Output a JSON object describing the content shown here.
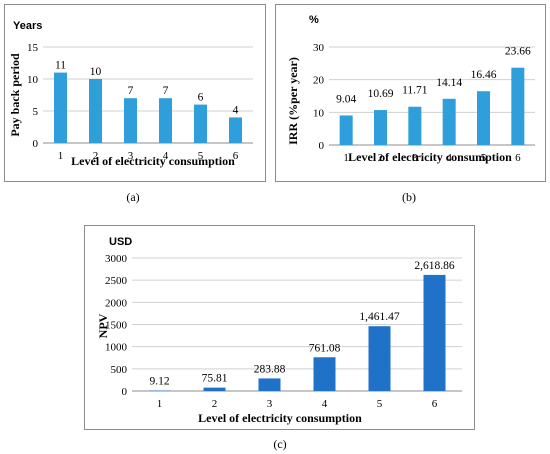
{
  "chart_data": [
    {
      "id": "a",
      "type": "bar",
      "unit_label": "Years",
      "ylabel": "Pay back period",
      "xlabel": "Level of electricity consumption",
      "categories": [
        "1",
        "2",
        "3",
        "4",
        "5",
        "6"
      ],
      "values": [
        11,
        10,
        7,
        7,
        6,
        4
      ],
      "data_labels": [
        "11",
        "10",
        "7",
        "7",
        "6",
        "4"
      ],
      "ylim": [
        0,
        15
      ],
      "yticks": [
        "0",
        "5",
        "10",
        "15"
      ],
      "ytick_values": [
        0,
        5,
        10,
        15
      ],
      "grid": true,
      "bar_color": "#2e9fdb",
      "caption": "(a)"
    },
    {
      "id": "b",
      "type": "bar",
      "unit_label": "%",
      "ylabel": "IRR (%per year)",
      "xlabel": "Level of electricity consumption",
      "categories": [
        "1",
        "2",
        "3",
        "4",
        "5",
        "6"
      ],
      "values": [
        9.04,
        10.69,
        11.71,
        14.14,
        16.46,
        23.66
      ],
      "data_labels": [
        "9.04",
        "10.69",
        "11.71",
        "14.14",
        "16.46",
        "23.66"
      ],
      "ylim": [
        0,
        30
      ],
      "yticks": [
        "0",
        "10",
        "20",
        "30"
      ],
      "ytick_values": [
        0,
        10,
        20,
        30
      ],
      "grid": true,
      "bar_color": "#2e9fdb",
      "caption": "(b)"
    },
    {
      "id": "c",
      "type": "bar",
      "unit_label": "USD",
      "ylabel": "NPV",
      "xlabel": "Level of electricity consumption",
      "categories": [
        "1",
        "2",
        "3",
        "4",
        "5",
        "6"
      ],
      "values": [
        9.12,
        75.81,
        283.88,
        761.08,
        1461.47,
        2618.86
      ],
      "data_labels": [
        "9.12",
        "75.81",
        "283.88",
        "761.08",
        "1,461.47",
        "2,618.86"
      ],
      "ylim": [
        0,
        3000
      ],
      "yticks": [
        "0",
        "500",
        "1000",
        "1500",
        "2000",
        "2500",
        "3000"
      ],
      "ytick_values": [
        0,
        500,
        1000,
        1500,
        2000,
        2500,
        3000
      ],
      "grid": true,
      "bar_color": "#1f72c8",
      "caption": "(c)"
    }
  ]
}
